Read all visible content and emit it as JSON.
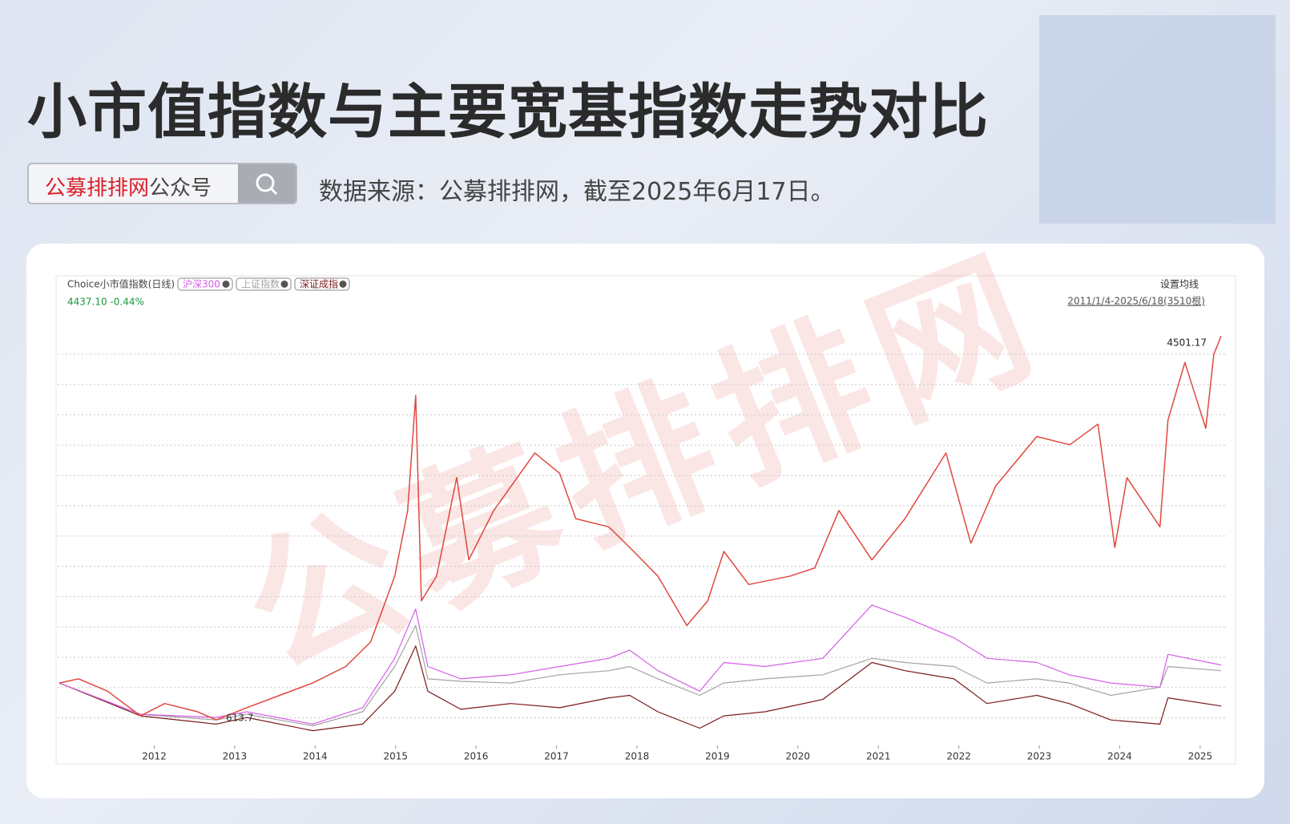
{
  "header": {
    "title": "小市值指数与主要宽基指数走势对比",
    "brand": "公募排排网",
    "brand_suffix": "公众号",
    "source": "数据来源：公募排排网，截至2025年6月17日。"
  },
  "chart_data": {
    "type": "line",
    "quote": "4437.10 -0.44%",
    "settings_label": "设置均线",
    "range_label": "2011/1/4-2025/6/18(3510根)",
    "watermark": "公募排排网",
    "xlim": [
      2010.8,
      2025.32
    ],
    "xticks": [
      2012,
      2013,
      2014,
      2015,
      2016,
      2017,
      2018,
      2019,
      2020,
      2021,
      2022,
      2023,
      2024,
      2025
    ],
    "ylim": [
      364,
      4609
    ],
    "annotations": [
      "4501.17",
      "613.7"
    ],
    "series": [
      {
        "name": "Choice小市值指数(日线)",
        "color": "#e0483e",
        "x": [
          2010.82,
          2011.06,
          2011.42,
          2011.83,
          2012.13,
          2012.54,
          2012.77,
          2013.15,
          2013.56,
          2013.97,
          2014.38,
          2014.69,
          2014.99,
          2015.15,
          2015.25,
          2015.32,
          2015.51,
          2015.76,
          2015.91,
          2016.22,
          2016.73,
          2017.04,
          2017.24,
          2017.65,
          2017.96,
          2018.26,
          2018.62,
          2018.88,
          2019.08,
          2019.39,
          2019.9,
          2020.21,
          2020.51,
          2020.92,
          2021.33,
          2021.84,
          2022.15,
          2022.46,
          2022.97,
          2023.38,
          2023.73,
          2023.94,
          2024.09,
          2024.5,
          2024.6,
          2024.81,
          2025.07,
          2025.17,
          2025.26
        ],
        "values": [
          988,
          1030,
          905,
          655,
          780,
          697,
          613.7,
          738,
          863,
          988,
          1155,
          1404,
          2070,
          2735,
          3900,
          1820,
          2070,
          3070,
          2236,
          2735,
          3318,
          3110,
          2652,
          2569,
          2320,
          2070,
          1570,
          1820,
          2320,
          1986,
          2070,
          2153,
          2735,
          2236,
          2652,
          3318,
          2403,
          2985,
          3484,
          3401,
          3609,
          2361,
          3068,
          2569,
          3650,
          4233,
          3567,
          4316,
          4501.17
        ]
      },
      {
        "name": "沪深300",
        "color": "#d65ce8",
        "x": [
          2010.82,
          2011.83,
          2012.77,
          2013.15,
          2013.97,
          2014.59,
          2014.99,
          2015.25,
          2015.4,
          2015.81,
          2016.43,
          2017.04,
          2017.65,
          2017.91,
          2018.26,
          2018.78,
          2019.08,
          2019.59,
          2020.31,
          2020.92,
          2021.33,
          2021.94,
          2022.35,
          2022.97,
          2023.37,
          2023.89,
          2024.5,
          2024.6,
          2025.26
        ],
        "values": [
          988,
          672,
          639,
          697,
          572,
          738,
          1238,
          1737,
          1155,
          1030,
          1072,
          1155,
          1238,
          1321,
          1113,
          905,
          1196,
          1155,
          1238,
          1778,
          1654,
          1446,
          1238,
          1196,
          1072,
          988,
          946,
          1279,
          1171
        ]
      },
      {
        "name": "上证指数",
        "color": "#a3a3a3",
        "x": [
          2010.82,
          2011.83,
          2012.77,
          2013.15,
          2013.97,
          2014.59,
          2014.99,
          2015.25,
          2015.4,
          2015.81,
          2016.43,
          2017.04,
          2017.65,
          2017.91,
          2018.26,
          2018.78,
          2019.08,
          2019.59,
          2020.31,
          2020.92,
          2021.33,
          2021.94,
          2022.35,
          2022.97,
          2023.37,
          2023.89,
          2024.5,
          2024.6,
          2025.26
        ],
        "values": [
          988,
          672,
          614,
          672,
          555,
          697,
          1155,
          1571,
          1030,
          1005,
          988,
          1072,
          1113,
          1155,
          1030,
          863,
          988,
          1030,
          1072,
          1238,
          1196,
          1155,
          988,
          1030,
          988,
          863,
          946,
          1155,
          1113
        ]
      },
      {
        "name": "深证成指",
        "color": "#7a1a1a",
        "x": [
          2010.82,
          2011.83,
          2012.77,
          2013.15,
          2013.97,
          2014.59,
          2014.99,
          2015.25,
          2015.4,
          2015.81,
          2016.43,
          2017.04,
          2017.65,
          2017.91,
          2018.26,
          2018.78,
          2019.08,
          2019.59,
          2020.31,
          2020.92,
          2021.33,
          2021.94,
          2022.35,
          2022.97,
          2023.37,
          2023.89,
          2024.5,
          2024.6,
          2025.26
        ],
        "values": [
          988,
          655,
          572,
          639,
          505,
          572,
          905,
          1363,
          905,
          722,
          780,
          738,
          838,
          863,
          697,
          530,
          655,
          697,
          822,
          1196,
          1113,
          1030,
          780,
          863,
          780,
          614,
          572,
          838,
          755
        ]
      }
    ]
  }
}
